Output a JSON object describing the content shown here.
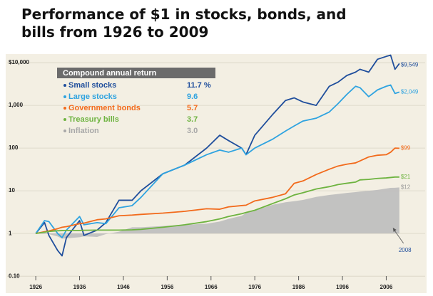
{
  "chart_data": {
    "type": "line",
    "title": "Performance of $1 in stocks, bonds, and bills from 1926 to 2009",
    "legend_title": "Compound annual return",
    "log_scale": true,
    "grid": true,
    "x": [
      1926,
      1928,
      1929,
      1931,
      1932,
      1933,
      1936,
      1937,
      1940,
      1942,
      1945,
      1948,
      1950,
      1955,
      1960,
      1965,
      1968,
      1970,
      1973,
      1974,
      1976,
      1980,
      1983,
      1985,
      1987,
      1990,
      1993,
      1995,
      1997,
      1999,
      2000,
      2002,
      2004,
      2006,
      2007,
      2008,
      2009
    ],
    "xlim": [
      1925,
      2010
    ],
    "xticks": [
      1926,
      1936,
      1946,
      1956,
      1966,
      1976,
      1986,
      1996,
      2006
    ],
    "ylim": [
      0.08,
      20000
    ],
    "yticks": [
      {
        "value": 0.1,
        "label": "0.10"
      },
      1,
      10,
      100,
      {
        "value": 1000,
        "label": "1,000"
      },
      {
        "value": 10000,
        "label": "$10,000"
      }
    ],
    "series": [
      {
        "name": "Small stocks",
        "color": "#1f4e9c",
        "return_label": "11.7 %",
        "end_label": "$9,549",
        "values": [
          1,
          1.8,
          0.9,
          0.4,
          0.3,
          0.8,
          2.0,
          0.9,
          1.2,
          1.8,
          6,
          6,
          10,
          25,
          40,
          100,
          200,
          150,
          100,
          70,
          200,
          600,
          1300,
          1500,
          1200,
          1000,
          2800,
          3500,
          5000,
          6000,
          7000,
          6000,
          12000,
          14000,
          15000,
          7000,
          9549
        ]
      },
      {
        "name": "Large stocks",
        "color": "#2ea3e0",
        "return_label": "9.6",
        "end_label": "$2,049",
        "values": [
          1,
          2.0,
          1.9,
          1.0,
          0.8,
          1.2,
          2.5,
          1.6,
          1.8,
          1.7,
          4,
          4.5,
          7,
          25,
          40,
          70,
          90,
          80,
          100,
          70,
          100,
          160,
          250,
          330,
          430,
          500,
          700,
          1100,
          1800,
          2800,
          2600,
          1600,
          2300,
          2800,
          3000,
          1900,
          2049
        ]
      },
      {
        "name": "Government bonds",
        "color": "#f26a1b",
        "return_label": "5.7",
        "end_label": "$99",
        "values": [
          1,
          1.1,
          1.15,
          1.3,
          1.4,
          1.45,
          1.7,
          1.75,
          2.1,
          2.2,
          2.6,
          2.7,
          2.8,
          3,
          3.3,
          3.8,
          3.7,
          4.2,
          4.5,
          4.6,
          5.8,
          7,
          8.5,
          15,
          17,
          24,
          32,
          38,
          42,
          45,
          50,
          62,
          68,
          70,
          80,
          100,
          99
        ]
      },
      {
        "name": "Treasury bills",
        "color": "#6db33f",
        "return_label": "3.7",
        "end_label": "$21",
        "values": [
          1,
          1.07,
          1.12,
          1.16,
          1.17,
          1.18,
          1.18,
          1.19,
          1.2,
          1.2,
          1.2,
          1.22,
          1.25,
          1.4,
          1.6,
          1.9,
          2.2,
          2.5,
          2.9,
          3.1,
          3.5,
          5,
          6.5,
          8,
          9,
          11,
          12.5,
          14,
          15,
          16,
          18,
          18.5,
          19.5,
          20,
          20.5,
          21,
          21
        ]
      },
      {
        "name": "Inflation",
        "color": "#bdbdbd",
        "area": true,
        "return_label": "3.0",
        "end_label": "$12",
        "values": [
          1,
          0.97,
          0.97,
          0.85,
          0.76,
          0.77,
          0.82,
          0.86,
          0.83,
          0.97,
          1.1,
          1.4,
          1.4,
          1.5,
          1.6,
          1.7,
          1.9,
          2.2,
          2.6,
          3.0,
          3.4,
          4.7,
          5.4,
          5.7,
          6.1,
          7.2,
          8.0,
          8.4,
          8.9,
          9.3,
          9.6,
          10,
          10.5,
          11.3,
          11.7,
          11.8,
          12
        ]
      }
    ],
    "annotation": {
      "label": "2008",
      "x": 2008
    }
  }
}
